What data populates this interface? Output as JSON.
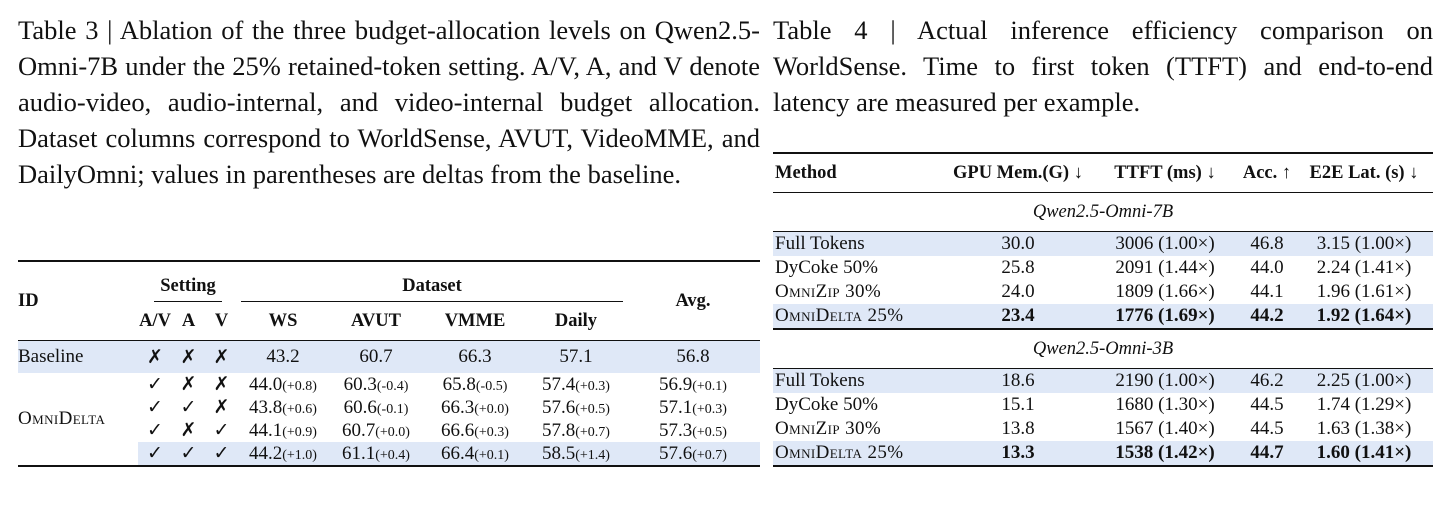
{
  "table3": {
    "caption": "Table 3 | Ablation of the three budget-allocation levels on Qwen2.5-Omni-7B under the 25% retained-token setting. A/V, A, and V denote audio-video, audio-internal, and video-internal budget allocation. Dataset columns correspond to WorldSense, AVUT, VideoMME, and DailyOmni; values in parentheses are deltas from the baseline.",
    "headers": {
      "id": "ID",
      "setting": "Setting",
      "dataset": "Dataset",
      "avg": "Avg.",
      "av": "A/V",
      "a": "A",
      "v": "V",
      "ws": "WS",
      "avut": "AVUT",
      "vmme": "VMME",
      "daily": "Daily"
    },
    "baseline": {
      "id": "Baseline",
      "av": "✗",
      "a": "✗",
      "v": "✗",
      "ws": "43.2",
      "avut": "60.7",
      "vmme": "66.3",
      "daily": "57.1",
      "avg": "56.8"
    },
    "omni_label": "OmniDelta",
    "rows": [
      {
        "av": "✓",
        "a": "✗",
        "v": "✗",
        "ws": "44.0",
        "ws_d": "(+0.8)",
        "avut": "60.3",
        "avut_d": "(-0.4)",
        "vmme": "65.8",
        "vmme_d": "(-0.5)",
        "daily": "57.4",
        "daily_d": "(+0.3)",
        "avg": "56.9",
        "avg_d": "(+0.1)"
      },
      {
        "av": "✓",
        "a": "✓",
        "v": "✗",
        "ws": "43.8",
        "ws_d": "(+0.6)",
        "avut": "60.6",
        "avut_d": "(-0.1)",
        "vmme": "66.3",
        "vmme_d": "(+0.0)",
        "daily": "57.6",
        "daily_d": "(+0.5)",
        "avg": "57.1",
        "avg_d": "(+0.3)"
      },
      {
        "av": "✓",
        "a": "✗",
        "v": "✓",
        "ws": "44.1",
        "ws_d": "(+0.9)",
        "avut": "60.7",
        "avut_d": "(+0.0)",
        "vmme": "66.6",
        "vmme_d": "(+0.3)",
        "daily": "57.8",
        "daily_d": "(+0.7)",
        "avg": "57.3",
        "avg_d": "(+0.5)"
      },
      {
        "av": "✓",
        "a": "✓",
        "v": "✓",
        "ws": "44.2",
        "ws_d": "(+1.0)",
        "avut": "61.1",
        "avut_d": "(+0.4)",
        "vmme": "66.4",
        "vmme_d": "(+0.1)",
        "daily": "58.5",
        "daily_d": "(+1.4)",
        "avg": "57.6",
        "avg_d": "(+0.7)"
      }
    ]
  },
  "table4": {
    "caption": "Table 4 | Actual inference efficiency comparison on WorldSense. Time to first token (TTFT) and end-to-end latency are measured per example.",
    "headers": {
      "method": "Method",
      "gpu": "GPU Mem.(G) ↓",
      "ttft": "TTFT (ms) ↓",
      "acc": "Acc. ↑",
      "e2e": "E2E Lat. (s) ↓"
    },
    "groups": [
      {
        "name": "Qwen2.5-Omni-7B",
        "rows": [
          {
            "method": "Full Tokens",
            "gpu": "30.0",
            "ttft": "3006 (1.00×)",
            "acc": "46.8",
            "e2e": "3.15 (1.00×)"
          },
          {
            "method": "DyCoke 50%",
            "gpu": "25.8",
            "ttft": "2091 (1.44×)",
            "acc": "44.0",
            "e2e": "2.24 (1.41×)"
          },
          {
            "method": "OmniZip 30%",
            "gpu": "24.0",
            "ttft": "1809 (1.66×)",
            "acc": "44.1",
            "e2e": "1.96 (1.61×)"
          },
          {
            "method": "OmniDelta 25%",
            "gpu": "23.4",
            "ttft": "1776 (1.69×)",
            "acc": "44.2",
            "e2e": "1.92 (1.64×)"
          }
        ]
      },
      {
        "name": "Qwen2.5-Omni-3B",
        "rows": [
          {
            "method": "Full Tokens",
            "gpu": "18.6",
            "ttft": "2190 (1.00×)",
            "acc": "46.2",
            "e2e": "2.25 (1.00×)"
          },
          {
            "method": "DyCoke 50%",
            "gpu": "15.1",
            "ttft": "1680 (1.30×)",
            "acc": "44.5",
            "e2e": "1.74 (1.29×)"
          },
          {
            "method": "OmniZip 30%",
            "gpu": "13.8",
            "ttft": "1567 (1.40×)",
            "acc": "44.5",
            "e2e": "1.63 (1.38×)"
          },
          {
            "method": "OmniDelta 25%",
            "gpu": "13.3",
            "ttft": "1538 (1.42×)",
            "acc": "44.7",
            "e2e": "1.60 (1.41×)"
          }
        ]
      }
    ]
  }
}
